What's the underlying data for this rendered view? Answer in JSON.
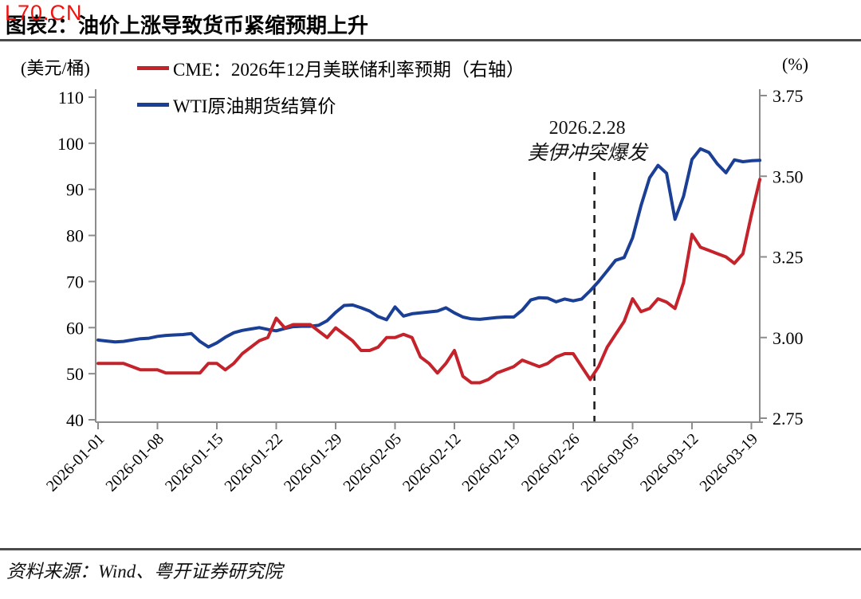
{
  "watermark": "L70.CN",
  "header": {
    "title": "图表2：油价上涨导致货币紧缩预期上升"
  },
  "footer": {
    "source": "资料来源：Wind、粤开证券研究院"
  },
  "chart_data": {
    "type": "line",
    "title": "油价上涨导致货币紧缩预期上升",
    "grid": false,
    "legend_position": "top-left",
    "left_axis": {
      "unit": "(美元/桶)",
      "ticks": [
        110,
        100,
        90,
        80,
        70,
        60,
        50,
        40
      ],
      "range": [
        40,
        110
      ]
    },
    "right_axis": {
      "unit": "(%)",
      "ticks": [
        "3.75",
        "3.50",
        "3.25",
        "3.00",
        "2.75"
      ],
      "range": [
        2.75,
        3.75
      ]
    },
    "x_tick_labels": [
      "2026-01-01",
      "2026-01-08",
      "2026-01-15",
      "2026-01-22",
      "2026-01-29",
      "2026-02-05",
      "2026-02-12",
      "2026-02-19",
      "2026-02-26",
      "2026-03-05",
      "2026-03-12",
      "2026-03-19"
    ],
    "x_tick_day_index": [
      0,
      7,
      14,
      21,
      28,
      35,
      42,
      49,
      56,
      63,
      70,
      77
    ],
    "annotation": {
      "line1": "2026.2.28",
      "line2": "美伊冲突爆发",
      "day_index": 58.5
    },
    "dates": [
      "2026-01-01",
      "2026-01-02",
      "2026-01-03",
      "2026-01-04",
      "2026-01-05",
      "2026-01-06",
      "2026-01-07",
      "2026-01-08",
      "2026-01-09",
      "2026-01-10",
      "2026-01-11",
      "2026-01-12",
      "2026-01-13",
      "2026-01-14",
      "2026-01-15",
      "2026-01-16",
      "2026-01-17",
      "2026-01-18",
      "2026-01-19",
      "2026-01-20",
      "2026-01-21",
      "2026-01-22",
      "2026-01-23",
      "2026-01-24",
      "2026-01-25",
      "2026-01-26",
      "2026-01-27",
      "2026-01-28",
      "2026-01-29",
      "2026-01-30",
      "2026-01-31",
      "2026-02-01",
      "2026-02-02",
      "2026-02-03",
      "2026-02-04",
      "2026-02-05",
      "2026-02-06",
      "2026-02-07",
      "2026-02-08",
      "2026-02-09",
      "2026-02-10",
      "2026-02-11",
      "2026-02-12",
      "2026-02-13",
      "2026-02-14",
      "2026-02-15",
      "2026-02-16",
      "2026-02-17",
      "2026-02-18",
      "2026-02-19",
      "2026-02-20",
      "2026-02-21",
      "2026-02-22",
      "2026-02-23",
      "2026-02-24",
      "2026-02-25",
      "2026-02-26",
      "2026-02-27",
      "2026-02-28",
      "2026-03-01",
      "2026-03-02",
      "2026-03-03",
      "2026-03-04",
      "2026-03-05",
      "2026-03-06",
      "2026-03-07",
      "2026-03-08",
      "2026-03-09",
      "2026-03-10",
      "2026-03-11",
      "2026-03-12",
      "2026-03-13",
      "2026-03-14",
      "2026-03-15",
      "2026-03-16",
      "2026-03-17",
      "2026-03-18",
      "2026-03-19",
      "2026-03-20"
    ],
    "series": [
      {
        "name": "CME：2026年12月美联储利率预期（右轴）",
        "axis": "right",
        "color": "#c4232b",
        "values": [
          2.92,
          2.92,
          2.92,
          2.92,
          2.91,
          2.9,
          2.9,
          2.9,
          2.89,
          2.89,
          2.89,
          2.89,
          2.89,
          2.92,
          2.92,
          2.9,
          2.92,
          2.95,
          2.97,
          2.99,
          3.0,
          3.06,
          3.03,
          3.04,
          3.04,
          3.04,
          3.02,
          3.0,
          3.03,
          3.01,
          2.99,
          2.96,
          2.96,
          2.97,
          3.0,
          3.0,
          3.01,
          3.0,
          2.94,
          2.92,
          2.89,
          2.92,
          2.96,
          2.88,
          2.86,
          2.86,
          2.87,
          2.89,
          2.9,
          2.91,
          2.93,
          2.92,
          2.91,
          2.92,
          2.94,
          2.95,
          2.95,
          2.91,
          2.87,
          2.91,
          2.97,
          3.01,
          3.05,
          3.12,
          3.08,
          3.09,
          3.12,
          3.11,
          3.09,
          3.17,
          3.32,
          3.28,
          3.27,
          3.26,
          3.25,
          3.23,
          3.26,
          3.38,
          3.49
        ]
      },
      {
        "name": "WTI原油期货结算价",
        "axis": "left",
        "color": "#1b3f94",
        "values": [
          57.3,
          57.1,
          56.9,
          57.0,
          57.3,
          57.6,
          57.7,
          58.1,
          58.3,
          58.4,
          58.5,
          58.7,
          57.0,
          55.8,
          56.7,
          57.9,
          58.9,
          59.4,
          59.7,
          60.0,
          59.6,
          59.3,
          59.8,
          60.2,
          60.3,
          60.3,
          60.5,
          61.5,
          63.3,
          64.8,
          64.9,
          64.3,
          63.6,
          62.4,
          61.7,
          64.5,
          62.5,
          63.0,
          63.2,
          63.4,
          63.6,
          64.3,
          63.2,
          62.3,
          61.9,
          61.8,
          62.0,
          62.2,
          62.3,
          62.3,
          63.8,
          66.0,
          66.5,
          66.4,
          65.6,
          66.2,
          65.8,
          66.2,
          68.0,
          70.0,
          72.3,
          74.6,
          75.2,
          79.5,
          86.5,
          92.5,
          95.2,
          93.5,
          83.5,
          88.5,
          96.5,
          98.8,
          98.0,
          95.5,
          93.6,
          96.4,
          96.0,
          96.2,
          96.3
        ]
      }
    ]
  }
}
